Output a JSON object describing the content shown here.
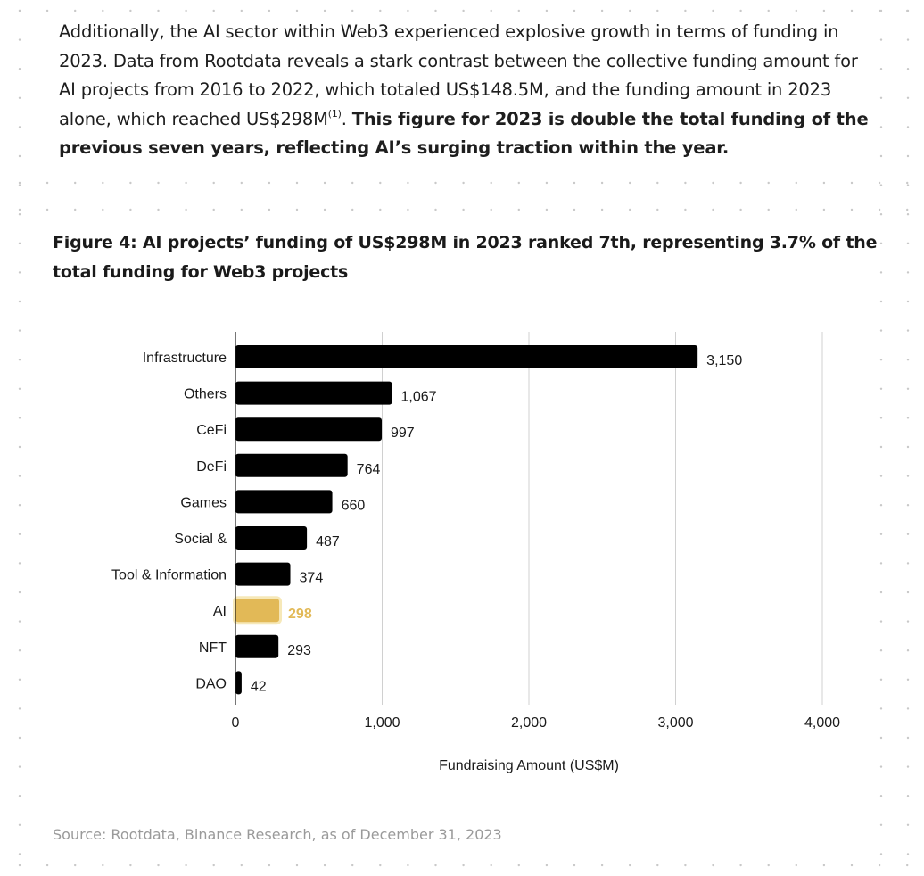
{
  "paragraph": {
    "part1": "Additionally, the AI sector within Web3 experienced explosive growth in terms of funding in 2023. Data from Rootdata reveals a stark contrast between the collective funding amount for AI projects from 2016 to 2022, which totaled US$148.5M, and the funding amount in 2023 alone, which reached US$298M",
    "footnote": "(1)",
    "part2": ". ",
    "bold": "This figure for 2023 is double the total funding of the previous seven years, reflecting AI’s surging traction within the year."
  },
  "figure_title": "Figure 4: AI projects’ funding of US$298M in 2023 ranked 7th, representing 3.7% of the total funding for Web3 projects",
  "source": "Source: Rootdata, Binance Research, as of December 31, 2023",
  "colors": {
    "bar": "#000000",
    "highlight": "#E2B957",
    "highlight_glow": "#F6E8B8",
    "grid": "#d0d0d0"
  },
  "chart_data": {
    "type": "bar",
    "orientation": "horizontal",
    "categories": [
      "Infrastructure",
      "Others",
      "CeFi",
      "DeFi",
      "Games",
      "Social &",
      "Tool & Information",
      "AI",
      "NFT",
      "DAO"
    ],
    "values": [
      3150,
      1067,
      997,
      764,
      660,
      487,
      374,
      298,
      293,
      42
    ],
    "value_labels": [
      "3,150",
      "1,067",
      "997",
      "764",
      "660",
      "487",
      "374",
      "298",
      "293",
      "42"
    ],
    "highlight_category": "AI",
    "xlabel": "Fundraising Amount (US$M)",
    "ylabel": "",
    "xlim": [
      0,
      4000
    ],
    "xticks": [
      0,
      1000,
      2000,
      3000,
      4000
    ],
    "xtick_labels": [
      "0",
      "1,000",
      "2,000",
      "3,000",
      "4,000"
    ],
    "grid": "vertical",
    "legend": "none"
  }
}
